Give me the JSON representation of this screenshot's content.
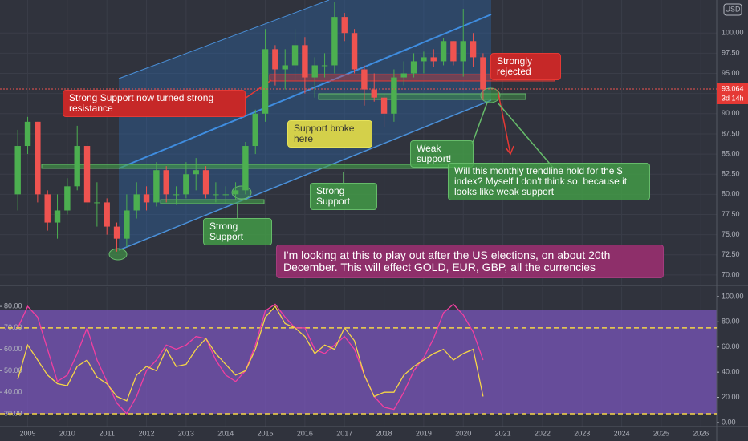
{
  "chart_data": [
    {
      "type": "candlestick",
      "currency": "USD",
      "x": [
        2008.75,
        2009,
        2009.25,
        2009.5,
        2009.75,
        2010,
        2010.25,
        2010.5,
        2010.75,
        2011,
        2011.25,
        2011.5,
        2011.75,
        2012,
        2012.25,
        2012.5,
        2012.75,
        2013,
        2013.25,
        2013.5,
        2013.75,
        2014,
        2014.25,
        2014.5,
        2014.75,
        2015,
        2015.25,
        2015.5,
        2015.75,
        2016,
        2016.25,
        2016.5,
        2016.75,
        2017,
        2017.25,
        2017.5,
        2017.75,
        2018,
        2018.25,
        2018.5,
        2018.75,
        2019,
        2019.25,
        2019.5,
        2019.75,
        2020,
        2020.25,
        2020.5
      ],
      "open": [
        80,
        86,
        89,
        80,
        76.5,
        78,
        81,
        86,
        79,
        79,
        76,
        74.5,
        78,
        80,
        79,
        83,
        80,
        80,
        82.5,
        83,
        80,
        80,
        80,
        80.5,
        86,
        90,
        98,
        95.5,
        96,
        98.5,
        94.5,
        96,
        96,
        102,
        100,
        95.5,
        93,
        92,
        90,
        94.5,
        95,
        96.5,
        97,
        96.5,
        99,
        96.5,
        99,
        97
      ],
      "high": [
        88,
        89.6,
        89,
        80.5,
        80,
        82,
        88.5,
        86.5,
        81.5,
        79.5,
        76.5,
        80,
        81.5,
        81,
        84,
        83.5,
        81,
        84,
        84.5,
        83.5,
        81.5,
        81,
        81.5,
        86.5,
        90.5,
        100.5,
        98.5,
        98,
        100.5,
        99.5,
        97,
        97.5,
        103.8,
        102.5,
        100.5,
        96,
        95,
        92.5,
        95.5,
        96.5,
        97.5,
        97.7,
        98,
        99.4,
        99,
        103,
        100,
        97.5
      ],
      "low": [
        78,
        85,
        79,
        75.5,
        74.5,
        77.5,
        80.5,
        78,
        76,
        75,
        72.9,
        73.5,
        77,
        78,
        78.5,
        79,
        78.7,
        79.5,
        80.5,
        79.5,
        79,
        78.9,
        79.3,
        80,
        85,
        89,
        93.5,
        93,
        94,
        92.5,
        92,
        94.5,
        95,
        99,
        95,
        91,
        91.5,
        88.3,
        89,
        93.5,
        94.5,
        95,
        95.8,
        96,
        96,
        94.6,
        95.8,
        91.7
      ],
      "close": [
        86,
        89,
        80,
        76.5,
        78,
        81,
        86,
        79,
        79,
        76,
        74.5,
        78,
        80,
        79,
        83,
        80,
        80,
        82.5,
        83,
        80,
        80,
        80,
        80.5,
        86,
        90,
        98,
        95.5,
        96,
        98.5,
        94.5,
        96,
        96,
        102,
        100,
        95.5,
        93,
        92,
        90,
        94.5,
        95,
        96.5,
        97,
        96.5,
        99,
        96.5,
        99,
        97,
        93
      ],
      "up_color": "#4caf50",
      "down_color": "#ef5350",
      "xlim": [
        2008.3,
        2026.4
      ],
      "xticks": [
        2009,
        2010,
        2011,
        2012,
        2013,
        2014,
        2015,
        2016,
        2017,
        2018,
        2019,
        2020,
        2021,
        2022,
        2023,
        2024,
        2025,
        2026
      ],
      "ylim": [
        68.8,
        104.1
      ],
      "yticks": [
        {
          "value": 70,
          "label": "70.00"
        },
        {
          "value": 72.5,
          "label": "72.50"
        },
        {
          "value": 75,
          "label": "75.00"
        },
        {
          "value": 77.5,
          "label": "77.50"
        },
        {
          "value": 80,
          "label": "80.00"
        },
        {
          "value": 82.5,
          "label": "82.50"
        },
        {
          "value": 85,
          "label": "85.00"
        },
        {
          "value": 87.5,
          "label": "87.50"
        },
        {
          "value": 90,
          "label": "90.00"
        },
        {
          "value": 92.5,
          "label": "92.50"
        },
        {
          "value": 95,
          "label": "95.00"
        },
        {
          "value": 97.5,
          "label": "97.50"
        },
        {
          "value": 100,
          "label": "100.00"
        }
      ],
      "last_price": 93.064,
      "countdown": "3d 14h",
      "grid": true,
      "annotations": [
        "Strong Support now turned strong resistance",
        "Strongly rejected",
        "Support broke here",
        "Weak support!",
        "Will this monthly trendline hold for the $ index? Myself I don't think so, because it looks like weak support",
        "Strong Support",
        "Strong Support",
        "I'm looking at this to play out after the US elections, on about 20th December. This will effect GOLD, EUR, GBP, all the currencies"
      ]
    },
    {
      "type": "line",
      "x": [
        2008.75,
        2009,
        2009.25,
        2009.5,
        2009.75,
        2010,
        2010.25,
        2010.5,
        2010.75,
        2011,
        2011.25,
        2011.5,
        2011.75,
        2012,
        2012.25,
        2012.5,
        2012.75,
        2013,
        2013.25,
        2013.5,
        2013.75,
        2014,
        2014.25,
        2014.5,
        2014.75,
        2015,
        2015.25,
        2015.5,
        2015.75,
        2016,
        2016.25,
        2016.5,
        2016.75,
        2017,
        2017.25,
        2017.5,
        2017.75,
        2018,
        2018.25,
        2018.5,
        2018.75,
        2019,
        2019.25,
        2019.5,
        2019.75,
        2020,
        2020.25,
        2020.5
      ],
      "series": [
        {
          "color": "#f23fa0",
          "values": [
            70,
            80,
            75,
            60,
            45,
            48,
            58,
            70,
            55,
            45,
            35,
            30,
            38,
            50,
            55,
            62,
            60,
            62,
            66,
            65,
            55,
            48,
            45,
            50,
            62,
            78,
            81,
            75,
            70,
            70,
            60,
            58,
            62,
            66,
            60,
            48,
            38,
            33,
            32,
            40,
            50,
            56,
            65,
            77,
            81,
            76,
            68,
            55
          ]
        },
        {
          "color": "#f5d547",
          "values": [
            46,
            62,
            55,
            48,
            44,
            43,
            52,
            55,
            47,
            44,
            38,
            36,
            48,
            52,
            50,
            60,
            52,
            53,
            60,
            65,
            58,
            53,
            48,
            50,
            60,
            75,
            80,
            72,
            70,
            66,
            58,
            62,
            60,
            70,
            64,
            48,
            38,
            40,
            40,
            48,
            52,
            55,
            58,
            60,
            55,
            58,
            60,
            38
          ]
        }
      ],
      "ylim": [
        24,
        89
      ],
      "yticks": [
        {
          "value": 30,
          "label": "30.00"
        },
        {
          "value": 40,
          "label": "40.00"
        },
        {
          "value": 50,
          "label": "50.00"
        },
        {
          "value": 60,
          "label": "60.00"
        },
        {
          "value": 70,
          "label": "70.00"
        },
        {
          "value": 80,
          "label": "80.00"
        }
      ],
      "y2lim": [
        -3.2,
        107.6
      ],
      "y2ticks": [
        {
          "value": 0,
          "label": "0.00"
        },
        {
          "value": 20,
          "label": "20.00"
        },
        {
          "value": 40,
          "label": "40.00"
        },
        {
          "value": 60,
          "label": "60.00"
        },
        {
          "value": 80,
          "label": "80.00"
        },
        {
          "value": 100,
          "label": "100.00"
        }
      ],
      "levels": [
        70,
        30
      ]
    }
  ]
}
